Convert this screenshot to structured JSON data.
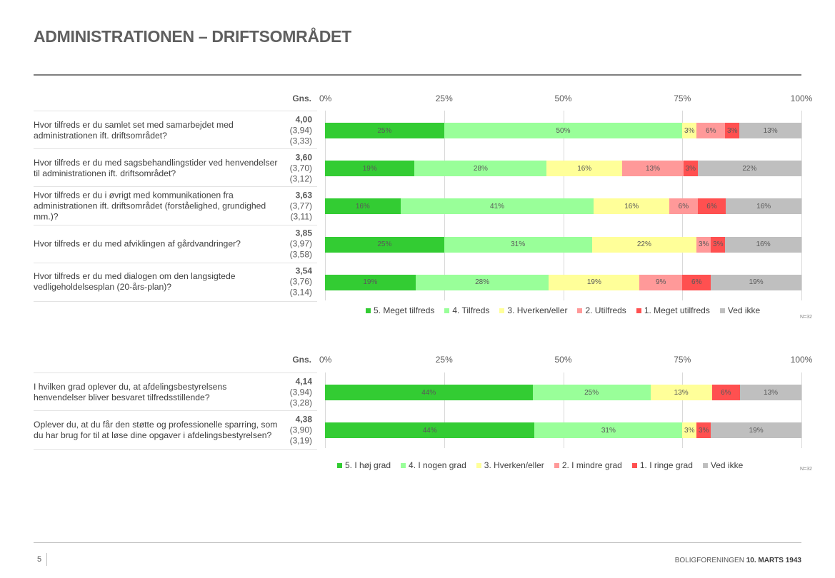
{
  "page": {
    "title": "ADMINISTRATIONEN – DRIFTSOMRÅDET",
    "page_number": "5",
    "footer_org": "BOLIGFORENINGEN",
    "footer_bold": "10. MARTS 1943"
  },
  "chart_data": [
    {
      "type": "bar",
      "orientation": "horizontal-stacked-100",
      "gns_header": "Gns.",
      "x_ticks": [
        "0%",
        "25%",
        "50%",
        "75%",
        "100%"
      ],
      "xlim": [
        0,
        100
      ],
      "n_note": "N=32",
      "series": [
        {
          "name": "5. Meget tilfreds",
          "color": "#33cc33"
        },
        {
          "name": "4. Tilfreds",
          "color": "#99ff99"
        },
        {
          "name": "3. Hverken/eller",
          "color": "#ffff99"
        },
        {
          "name": "2. Utilfreds",
          "color": "#ff9999"
        },
        {
          "name": "1. Meget utilfreds",
          "color": "#ff5050"
        },
        {
          "name": "Ved ikke",
          "color": "#bfbfbf"
        }
      ],
      "categories": [
        {
          "question": "Hvor tilfreds er du samlet set med samarbejdet med administrationen ift. driftsområdet?",
          "gns": "4,00",
          "gns_prev1": "(3,94)",
          "gns_prev2": "(3,33)",
          "values": [
            25,
            50,
            3,
            6,
            3,
            13
          ]
        },
        {
          "question": "Hvor tilfreds er du med sagsbehandlingstider ved henvendelser til administrationen ift. driftsområdet?",
          "gns": "3,60",
          "gns_prev1": "(3,70)",
          "gns_prev2": "(3,12)",
          "values": [
            19,
            28,
            16,
            13,
            3,
            22
          ]
        },
        {
          "question": "Hvor tilfreds er du i øvrigt med kommunikationen fra administrationen ift. driftsområdet (forståelighed, grundighed mm.)?",
          "gns": "3,63",
          "gns_prev1": "(3,77)",
          "gns_prev2": "(3,11)",
          "values": [
            16,
            41,
            16,
            6,
            6,
            16
          ]
        },
        {
          "question": "Hvor tilfreds er du med afviklingen af gårdvandringer?",
          "gns": "3,85",
          "gns_prev1": "(3,97)",
          "gns_prev2": "(3,58)",
          "values": [
            25,
            31,
            22,
            3,
            3,
            16
          ]
        },
        {
          "question": "Hvor tilfreds er du med dialogen om den langsigtede vedligeholdelsesplan (20-års-plan)?",
          "gns": "3,54",
          "gns_prev1": "(3,76)",
          "gns_prev2": "(3,14)",
          "values": [
            19,
            28,
            19,
            9,
            6,
            19
          ]
        }
      ]
    },
    {
      "type": "bar",
      "orientation": "horizontal-stacked-100",
      "gns_header": "Gns.",
      "x_ticks": [
        "0%",
        "25%",
        "50%",
        "75%",
        "100%"
      ],
      "xlim": [
        0,
        100
      ],
      "n_note": "N=32",
      "series": [
        {
          "name": "5. I høj grad",
          "color": "#33cc33"
        },
        {
          "name": "4. I nogen grad",
          "color": "#99ff99"
        },
        {
          "name": "3. Hverken/eller",
          "color": "#ffff99"
        },
        {
          "name": "2. I mindre grad",
          "color": "#ff9999"
        },
        {
          "name": "1. I ringe grad",
          "color": "#ff5050"
        },
        {
          "name": "Ved ikke",
          "color": "#bfbfbf"
        }
      ],
      "categories": [
        {
          "question": "I hvilken grad oplever du, at afdelingsbestyrelsens henvendelser bliver besvaret tilfredsstillende?",
          "gns": "4,14",
          "gns_prev1": "(3,94)",
          "gns_prev2": "(3,28)",
          "values": [
            44,
            25,
            13,
            0,
            6,
            13
          ]
        },
        {
          "question": "Oplever du, at du får den støtte og professionelle sparring, som du har brug for til at løse dine opgaver i afdelingsbestyrelsen?",
          "gns": "4,38",
          "gns_prev1": "(3,90)",
          "gns_prev2": "(3,19)",
          "values": [
            44,
            31,
            3,
            0,
            3,
            19
          ]
        }
      ]
    }
  ]
}
